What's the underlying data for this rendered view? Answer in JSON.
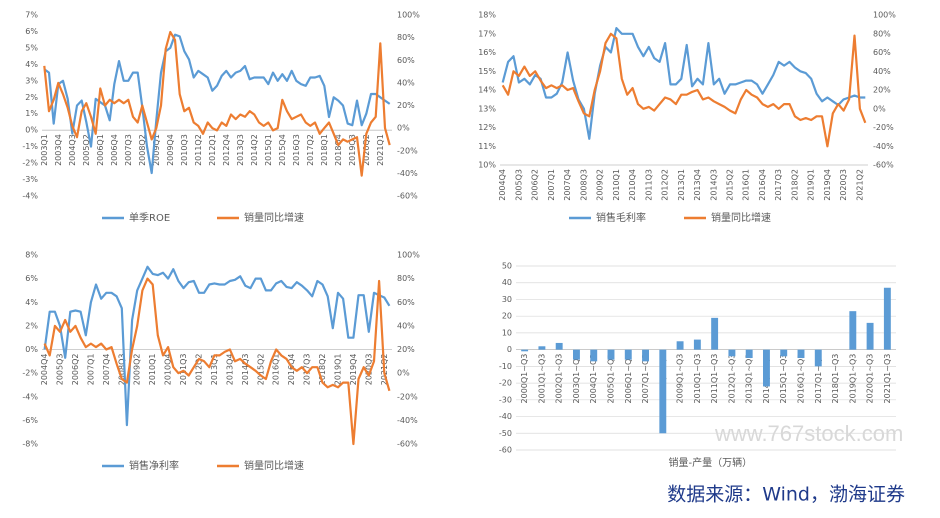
{
  "chart_data": [
    {
      "type": "line",
      "xlim": null,
      "categories": [
        "2003Q1",
        null,
        null,
        "2003Q4",
        null,
        null,
        "2004Q3",
        null,
        null,
        "2005Q2",
        null,
        null,
        "2006Q1",
        null,
        null,
        "2006Q4",
        null,
        null,
        "2007Q3",
        null,
        null,
        "2008Q2",
        null,
        null,
        "2009Q1",
        null,
        null,
        "2009Q4",
        null,
        null,
        "2010Q3",
        null,
        null,
        "2011Q2",
        null,
        null,
        "2012Q1",
        null,
        null,
        "2012Q4",
        null,
        null,
        "2013Q3",
        null,
        null,
        "2014Q2",
        null,
        null,
        "2015Q1",
        null,
        null,
        "2015Q4",
        null,
        null,
        "2016Q3",
        null,
        null,
        "2017Q2",
        null,
        null,
        "2018Q1",
        null,
        null,
        "2018Q4",
        null,
        null,
        "2019Q3",
        null,
        null,
        "2020Q2",
        null,
        null,
        "2021Q1",
        null,
        null
      ],
      "series": [
        {
          "name": "单季ROE",
          "color": "#5b9bd5",
          "axis": "y",
          "values": [
            3.7,
            3.5,
            0.4,
            2.8,
            3.0,
            1.9,
            -0.2,
            1.5,
            1.8,
            0.5,
            -1.0,
            1.9,
            1.7,
            1.5,
            0.6,
            2.8,
            4.2,
            3.0,
            3.0,
            3.5,
            3.5,
            1.4,
            -1.0,
            -2.6,
            0.6,
            3.5,
            4.8,
            5.0,
            5.8,
            5.7,
            4.8,
            4.3,
            3.2,
            3.6,
            3.4,
            3.2,
            2.4,
            2.7,
            3.3,
            3.6,
            3.2,
            3.5,
            3.6,
            3.9,
            3.1,
            3.2,
            3.2,
            3.2,
            2.8,
            3.5,
            3.0,
            3.4,
            3.0,
            3.6,
            3.0,
            2.8,
            2.7,
            3.2,
            3.2,
            3.3,
            2.7,
            0.8,
            2.0,
            1.8,
            1.5,
            0.4,
            0.3,
            1.8,
            0.3,
            1.0,
            2.2,
            2.2,
            2.0,
            1.8,
            1.6
          ]
        },
        {
          "name": "销量同比增速",
          "color": "#ed7d31",
          "axis": "y2",
          "values": [
            55,
            15,
            25,
            40,
            30,
            18,
            2,
            -8,
            15,
            22,
            10,
            -5,
            35,
            20,
            25,
            22,
            25,
            22,
            25,
            10,
            5,
            20,
            5,
            -10,
            0,
            20,
            70,
            85,
            78,
            30,
            15,
            18,
            5,
            2,
            -5,
            5,
            0,
            -2,
            5,
            2,
            12,
            8,
            12,
            10,
            15,
            12,
            5,
            2,
            5,
            -2,
            0,
            25,
            15,
            8,
            10,
            12,
            5,
            2,
            5,
            -5,
            0,
            5,
            -5,
            -15,
            -10,
            -12,
            -10,
            -8,
            -42,
            -5,
            5,
            10,
            75,
            0,
            -15
          ]
        }
      ],
      "ylim": [
        -4,
        7
      ],
      "yticks": [
        {
          "value": -4,
          "label": "-4%"
        },
        {
          "value": -3,
          "label": "-3%"
        },
        {
          "value": -2,
          "label": "-2%"
        },
        {
          "value": -1,
          "label": "-1%"
        },
        {
          "value": 0,
          "label": "0%"
        },
        {
          "value": 1,
          "label": "1%"
        },
        {
          "value": 2,
          "label": "2%"
        },
        {
          "value": 3,
          "label": "3%"
        },
        {
          "value": 4,
          "label": "4%"
        },
        {
          "value": 5,
          "label": "5%"
        },
        {
          "value": 6,
          "label": "6%"
        },
        {
          "value": 7,
          "label": "7%"
        }
      ],
      "y2lim": [
        -60,
        100
      ],
      "y2ticks": [
        {
          "value": -60,
          "label": "-60%"
        },
        {
          "value": -40,
          "label": "-40%"
        },
        {
          "value": -20,
          "label": "-20%"
        },
        {
          "value": 0,
          "label": "0%"
        },
        {
          "value": 20,
          "label": "20%"
        },
        {
          "value": 40,
          "label": "40%"
        },
        {
          "value": 60,
          "label": "60%"
        },
        {
          "value": 80,
          "label": "80%"
        },
        {
          "value": 100,
          "label": "100%"
        }
      ],
      "grid": false
    },
    {
      "type": "line",
      "categories": [
        "2004Q4",
        null,
        null,
        "2005Q3",
        null,
        null,
        "2006Q2",
        null,
        null,
        "2007Q1",
        null,
        null,
        "2007Q4",
        null,
        null,
        "2008Q3",
        null,
        null,
        "2009Q2",
        null,
        null,
        "2010Q1",
        null,
        null,
        "2010Q4",
        null,
        null,
        "2011Q3",
        null,
        null,
        "2012Q2",
        null,
        null,
        "2013Q1",
        null,
        null,
        "2013Q4",
        null,
        null,
        "2014Q3",
        null,
        null,
        "2015Q2",
        null,
        null,
        "2016Q1",
        null,
        null,
        "2016Q4",
        null,
        null,
        "2017Q3",
        null,
        null,
        "2018Q2",
        null,
        null,
        "2019Q1",
        null,
        null,
        "2019Q4",
        null,
        null,
        "2020Q3",
        null,
        null,
        "2021Q2",
        null
      ],
      "series": [
        {
          "name": "销售毛利率",
          "color": "#5b9bd5",
          "axis": "y",
          "values": [
            14.4,
            15.5,
            15.8,
            14.4,
            14.6,
            14.3,
            14.8,
            14.6,
            13.6,
            13.6,
            13.8,
            14.4,
            16.0,
            14.5,
            13.5,
            13.0,
            11.4,
            13.8,
            15.3,
            16.3,
            16.0,
            17.3,
            17.0,
            17.0,
            17.0,
            16.3,
            15.8,
            16.3,
            15.7,
            15.5,
            16.5,
            14.3,
            14.3,
            14.6,
            16.4,
            14.2,
            14.6,
            14.3,
            16.5,
            14.3,
            14.6,
            13.8,
            14.3,
            14.3,
            14.4,
            14.5,
            14.5,
            14.3,
            13.8,
            14.3,
            14.8,
            15.5,
            15.3,
            15.5,
            15.2,
            15.0,
            14.9,
            14.6,
            13.8,
            13.4,
            13.6,
            13.4,
            13.2,
            13.5,
            13.6,
            13.7,
            13.6,
            13.6
          ]
        },
        {
          "name": "销量同比增速",
          "color": "#ed7d31",
          "axis": "y2",
          "values": [
            25,
            15,
            40,
            35,
            45,
            35,
            40,
            30,
            22,
            25,
            22,
            25,
            20,
            22,
            8,
            -5,
            -8,
            20,
            40,
            70,
            80,
            75,
            32,
            15,
            22,
            5,
            0,
            2,
            -2,
            5,
            12,
            10,
            5,
            15,
            15,
            18,
            20,
            10,
            12,
            8,
            5,
            2,
            -2,
            -5,
            10,
            20,
            15,
            12,
            5,
            2,
            5,
            0,
            5,
            5,
            -8,
            -12,
            -10,
            -12,
            -8,
            -8,
            -40,
            -5,
            5,
            -2,
            10,
            78,
            0,
            -15
          ]
        }
      ],
      "ylim": [
        10,
        18
      ],
      "yticks": [
        {
          "value": 10,
          "label": "10%"
        },
        {
          "value": 11,
          "label": "11%"
        },
        {
          "value": 12,
          "label": "12%"
        },
        {
          "value": 13,
          "label": "13%"
        },
        {
          "value": 14,
          "label": "14%"
        },
        {
          "value": 15,
          "label": "15%"
        },
        {
          "value": 16,
          "label": "16%"
        },
        {
          "value": 17,
          "label": "17%"
        },
        {
          "value": 18,
          "label": "18%"
        }
      ],
      "y2lim": [
        -60,
        100
      ],
      "y2ticks": [
        {
          "value": -60,
          "label": "-60%"
        },
        {
          "value": -40,
          "label": "-40%"
        },
        {
          "value": -20,
          "label": "-20%"
        },
        {
          "value": 0,
          "label": "0%"
        },
        {
          "value": 20,
          "label": "20%"
        },
        {
          "value": 40,
          "label": "40%"
        },
        {
          "value": 60,
          "label": "60%"
        },
        {
          "value": 80,
          "label": "80%"
        },
        {
          "value": 100,
          "label": "100%"
        }
      ],
      "grid": false
    },
    {
      "type": "line",
      "categories": [
        "2004Q4",
        null,
        null,
        "2005Q3",
        null,
        null,
        "2006Q2",
        null,
        null,
        "2007Q1",
        null,
        null,
        "2007Q4",
        null,
        null,
        "2008Q3",
        null,
        null,
        "2009Q2",
        null,
        null,
        "2010Q1",
        null,
        null,
        "2010Q4",
        null,
        null,
        "2011Q3",
        null,
        null,
        "2012Q2",
        null,
        null,
        "2013Q1",
        null,
        null,
        "2013Q4",
        null,
        null,
        "2014Q3",
        null,
        null,
        "2015Q2",
        null,
        null,
        "2016Q1",
        null,
        null,
        "2016Q4",
        null,
        null,
        "2017Q3",
        null,
        null,
        "2018Q2",
        null,
        null,
        "2019Q1",
        null,
        null,
        "2019Q4",
        null,
        null,
        "2020Q3",
        null,
        null,
        "2021Q2",
        null
      ],
      "series": [
        {
          "name": "销售净利率",
          "color": "#5b9bd5",
          "axis": "y",
          "values": [
            0.0,
            3.2,
            3.2,
            2.0,
            -0.7,
            3.2,
            3.3,
            3.2,
            1.2,
            4.0,
            5.5,
            4.3,
            4.8,
            4.8,
            4.5,
            3.5,
            -6.4,
            2.5,
            5.0,
            6.0,
            7.0,
            6.4,
            6.3,
            6.5,
            6.0,
            6.8,
            5.8,
            5.2,
            5.7,
            5.8,
            4.8,
            4.8,
            5.5,
            5.6,
            5.5,
            5.5,
            5.8,
            5.9,
            6.2,
            5.4,
            5.2,
            6.0,
            6.0,
            5.0,
            5.0,
            5.6,
            5.8,
            5.3,
            5.2,
            5.7,
            5.4,
            5.0,
            4.5,
            5.8,
            5.5,
            4.5,
            1.8,
            4.8,
            4.3,
            1.0,
            1.0,
            4.6,
            4.6,
            1.5,
            4.8,
            4.6,
            4.4,
            3.7
          ]
        },
        {
          "name": "销量同比增速",
          "color": "#ed7d31",
          "axis": "y2",
          "values": [
            25,
            15,
            40,
            35,
            45,
            35,
            40,
            30,
            22,
            25,
            22,
            25,
            20,
            22,
            8,
            -5,
            -8,
            20,
            40,
            70,
            80,
            75,
            32,
            15,
            22,
            5,
            0,
            2,
            -2,
            5,
            12,
            10,
            5,
            15,
            15,
            18,
            20,
            10,
            12,
            8,
            5,
            2,
            -2,
            -5,
            10,
            20,
            15,
            12,
            5,
            2,
            5,
            0,
            5,
            5,
            -8,
            -12,
            -10,
            -12,
            -8,
            -8,
            -60,
            -5,
            5,
            -2,
            10,
            78,
            0,
            -15
          ]
        }
      ],
      "ylim": [
        -8,
        8
      ],
      "yticks": [
        {
          "value": -8,
          "label": "-8%"
        },
        {
          "value": -6,
          "label": "-6%"
        },
        {
          "value": -4,
          "label": "-4%"
        },
        {
          "value": -2,
          "label": "-2%"
        },
        {
          "value": 0,
          "label": "0%"
        },
        {
          "value": 2,
          "label": "2%"
        },
        {
          "value": 4,
          "label": "4%"
        },
        {
          "value": 6,
          "label": "6%"
        },
        {
          "value": 8,
          "label": "8%"
        }
      ],
      "y2lim": [
        -60,
        100
      ],
      "y2ticks": [
        {
          "value": -60,
          "label": "-60%"
        },
        {
          "value": -40,
          "label": "-40%"
        },
        {
          "value": -20,
          "label": "-20%"
        },
        {
          "value": 0,
          "label": "0%"
        },
        {
          "value": 20,
          "label": "20%"
        },
        {
          "value": 40,
          "label": "40%"
        },
        {
          "value": 60,
          "label": "60%"
        },
        {
          "value": 80,
          "label": "80%"
        },
        {
          "value": 100,
          "label": "100%"
        }
      ],
      "grid": false
    },
    {
      "type": "bar",
      "color": "#5b9bd5",
      "series": [
        {
          "name": "销量-产量（万辆）",
          "color": "#5b9bd5",
          "values": [
            -1,
            2,
            4,
            -6,
            -7,
            -6,
            -6,
            -7,
            -50,
            5,
            6,
            19,
            -4,
            -5,
            -22,
            -4,
            -5,
            -10,
            0,
            23,
            16,
            37
          ]
        }
      ],
      "categories": [
        "2000Q1~Q3",
        "2001Q1~Q3",
        "2002Q1~Q3",
        "2003Q1~Q3",
        "2004Q1~Q3",
        "2005Q1~Q3",
        "2006Q1~Q3",
        "2007Q1~Q3",
        "2008Q1~Q3",
        "2009Q1~Q3",
        "2010Q1~Q3",
        "2011Q1~Q3",
        "2012Q1~Q3",
        "2013Q1~Q3",
        "2014Q1~Q3",
        "2015Q1~Q3",
        "2016Q1~Q3",
        "2017Q1~Q3",
        "2018Q1~Q3",
        "2019Q1~Q3",
        "2020Q1~Q3",
        "2021Q1~Q3"
      ],
      "ylim": [
        -60,
        50
      ],
      "yticks": [
        -60,
        -50,
        -40,
        -30,
        -20,
        -10,
        0,
        10,
        20,
        30,
        40,
        50
      ],
      "grid": true
    }
  ],
  "watermark": "www.767stock.com",
  "source": "数据来源：Wind，渤海证券"
}
